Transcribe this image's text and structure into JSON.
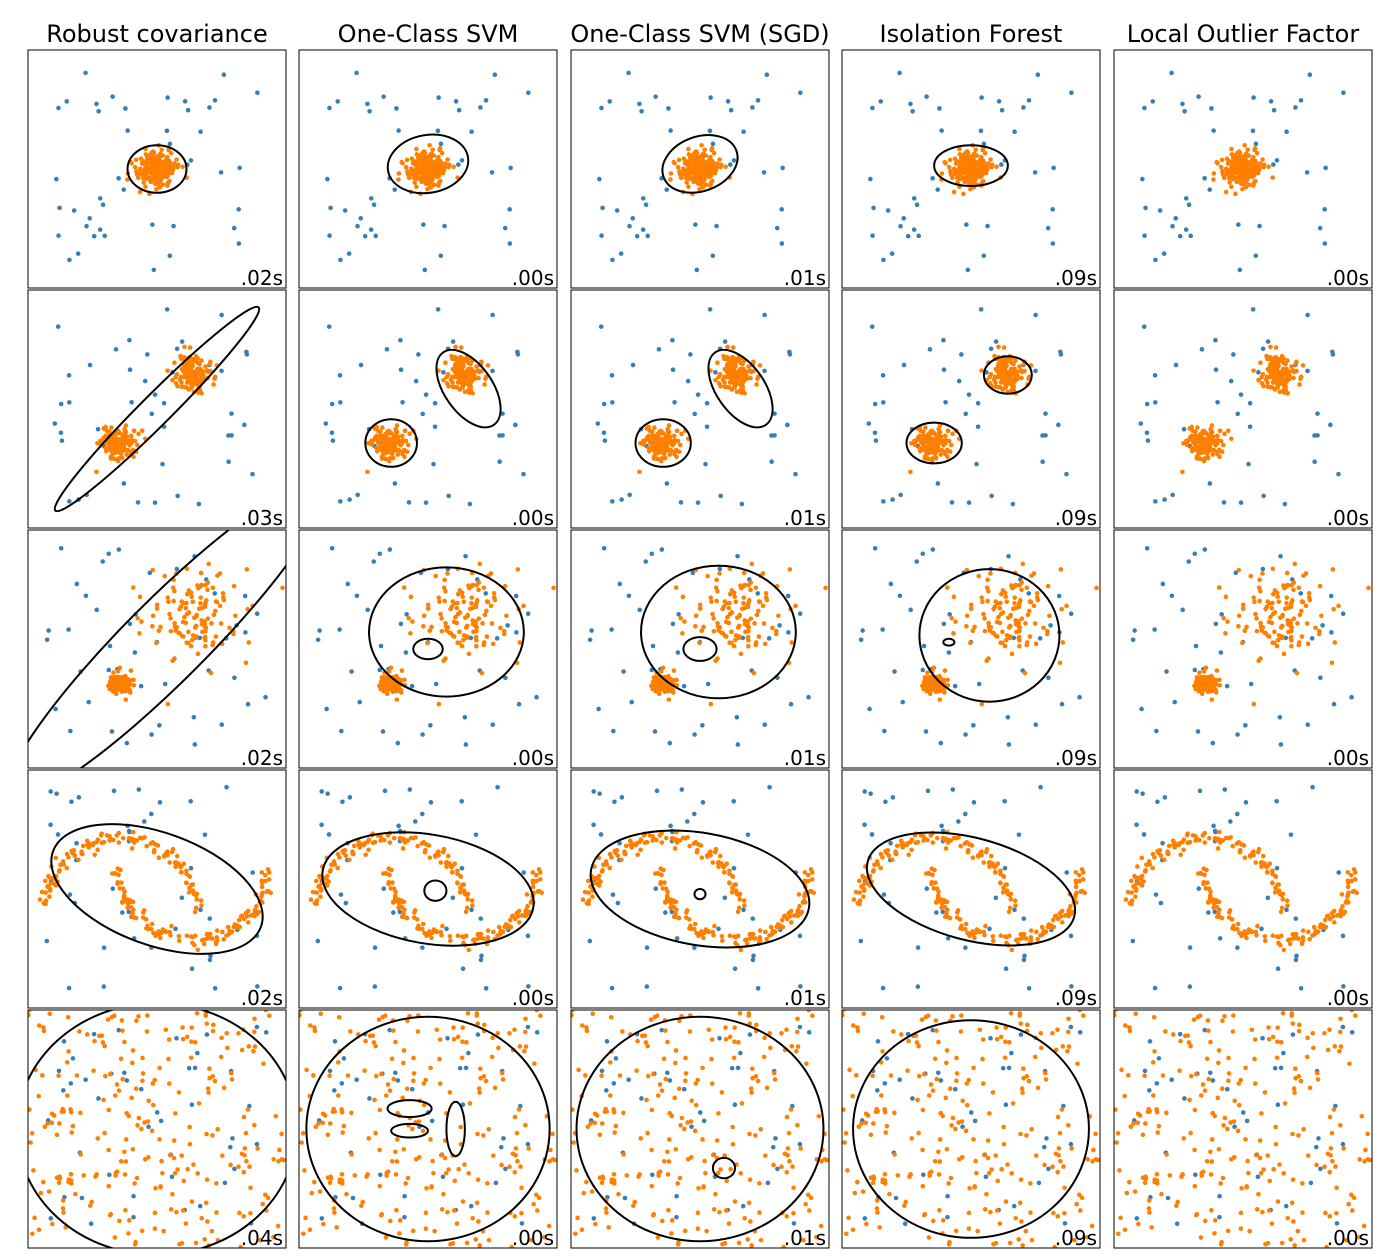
{
  "chart_data": {
    "type": "scatter",
    "layout": "grid 5 rows x 5 columns",
    "column_titles": [
      "Robust covariance",
      "One-Class SVM",
      "One-Class SVM (SGD)",
      "Isolation Forest",
      "Local Outlier Factor"
    ],
    "xlim": [
      -7,
      7
    ],
    "ylim": [
      -7,
      7
    ],
    "axes_ticks": false,
    "grid": false,
    "colors": {
      "inlier": "#ff7f00",
      "outlier": "#377eb8",
      "decision_boundary": "#000000"
    },
    "times": [
      [
        ".02s",
        ".00s",
        ".01s",
        ".09s",
        ".00s"
      ],
      [
        ".03s",
        ".00s",
        ".01s",
        ".09s",
        ".00s"
      ],
      [
        ".02s",
        ".00s",
        ".01s",
        ".09s",
        ".00s"
      ],
      [
        ".02s",
        ".00s",
        ".01s",
        ".09s",
        ".00s"
      ],
      [
        ".04s",
        ".00s",
        ".01s",
        ".09s",
        ".00s"
      ]
    ]
  }
}
